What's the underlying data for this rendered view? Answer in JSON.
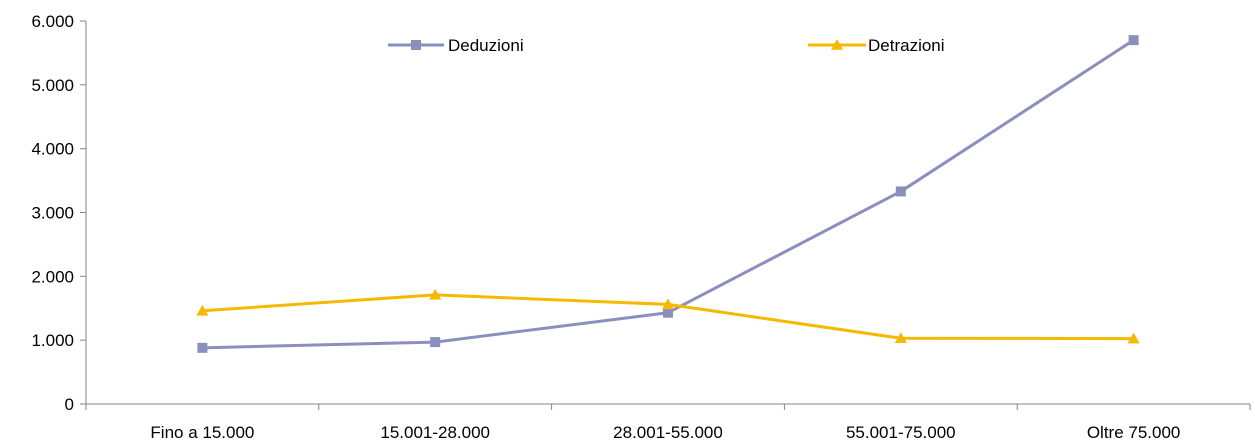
{
  "chart_data": {
    "type": "line",
    "categories": [
      "Fino a 15.000",
      "15.001-28.000",
      "28.001-55.000",
      "55.001-75.000",
      "Oltre 75.000"
    ],
    "series": [
      {
        "name": "Deduzioni",
        "values": [
          880,
          970,
          1430,
          3330,
          5700
        ],
        "color": "#8A8FC0",
        "marker": "square"
      },
      {
        "name": "Detrazioni",
        "values": [
          1460,
          1710,
          1560,
          1030,
          1025
        ],
        "color": "#F6B800",
        "marker": "triangle"
      }
    ],
    "yticks": [
      "0",
      "1.000",
      "2.000",
      "3.000",
      "4.000",
      "5.000",
      "6.000"
    ],
    "ylim": [
      0,
      6000
    ],
    "title": "",
    "xlabel": "",
    "ylabel": "",
    "grid": false,
    "legend": "top"
  }
}
